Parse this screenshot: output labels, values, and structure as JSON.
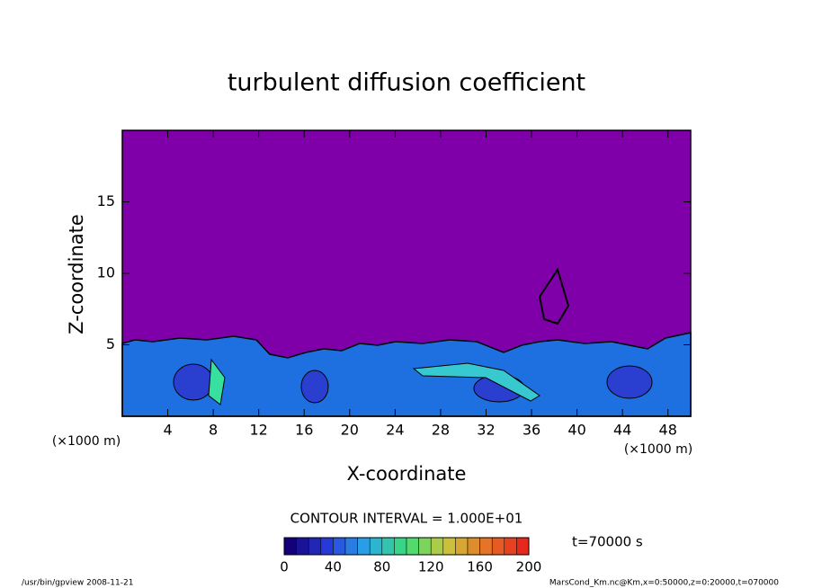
{
  "chart_data": {
    "type": "contour",
    "title": "turbulent diffusion coefficient",
    "xlabel": "X-coordinate",
    "ylabel": "Z-coordinate",
    "xunit": "(×1000 m)",
    "yunit": "(×1000 m)",
    "xlim": [
      0,
      50
    ],
    "ylim": [
      0,
      20
    ],
    "xticks": [
      4,
      8,
      12,
      16,
      20,
      24,
      28,
      32,
      36,
      40,
      44,
      48
    ],
    "yticks": [
      5,
      10,
      15
    ],
    "contour_interval": "CONTOUR INTERVAL = 1.000E+01",
    "time": "t=70000 s",
    "colorbar": {
      "lim": [
        0,
        200
      ],
      "ticks": [
        0,
        40,
        80,
        120,
        160,
        200
      ]
    },
    "footer_left": "/usr/bin/gpview   2008-11-21",
    "footer_right": "MarsCond_Km.nc@Km,x=0:50000,z=0:20000,t=070000"
  }
}
